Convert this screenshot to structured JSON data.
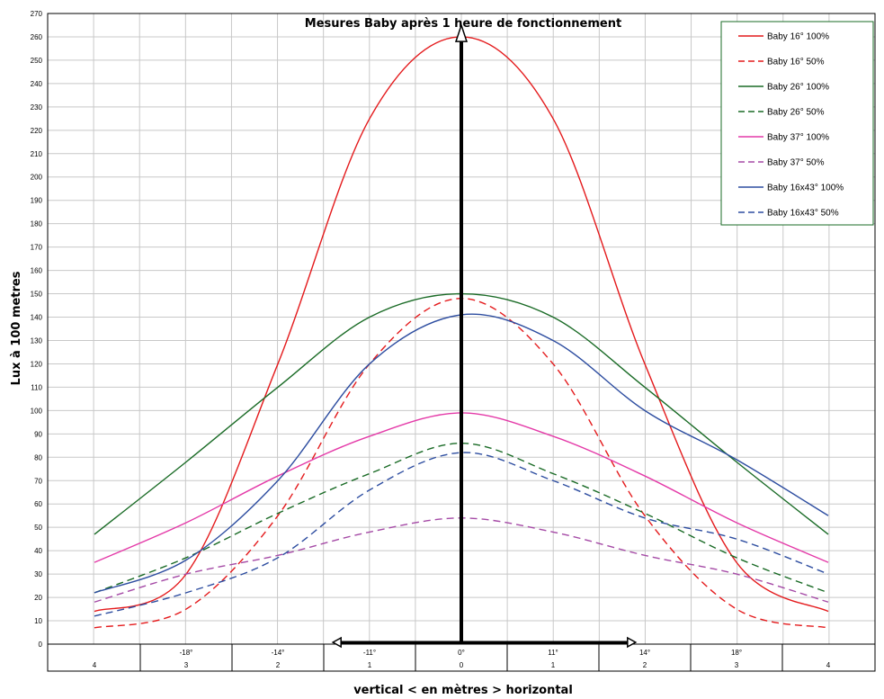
{
  "chart_data": {
    "type": "line",
    "title": "Mesures Baby après 1 heure de fonctionnement",
    "xlabel": "vertical < en mètres > horizontal",
    "ylabel": "Lux à 100 metres",
    "ylim": [
      0,
      270
    ],
    "y_ticks": [
      0,
      10,
      20,
      30,
      40,
      50,
      60,
      70,
      80,
      90,
      100,
      110,
      120,
      130,
      140,
      150,
      160,
      170,
      180,
      190,
      200,
      210,
      220,
      230,
      240,
      250,
      260,
      270
    ],
    "x": [
      -4,
      -3,
      -2,
      -1,
      0,
      1,
      2,
      3,
      4
    ],
    "x_angle_labels": [
      "",
      "-18°",
      "-14°",
      "-11°",
      "0°",
      "11°",
      "14°",
      "18°",
      ""
    ],
    "x_meter_labels": [
      "4",
      "3",
      "2",
      "1",
      "0",
      "1",
      "2",
      "3",
      "4"
    ],
    "grid": true,
    "legend_position": "top-right",
    "annotations": [
      "vertical arrow at 0",
      "horizontal double arrow from -1.4 to 1.9"
    ],
    "series": [
      {
        "name": "Baby 16° 100%",
        "color": "#e41a1c",
        "dash": false,
        "points": [
          [
            -4,
            14
          ],
          [
            -3,
            30
          ],
          [
            -2,
            120
          ],
          [
            -1,
            225
          ],
          [
            0,
            260
          ],
          [
            1,
            225
          ],
          [
            2,
            120
          ],
          [
            3,
            35
          ],
          [
            4,
            14
          ]
        ]
      },
      {
        "name": "Baby 16° 50%",
        "color": "#e41a1c",
        "dash": true,
        "points": [
          [
            -4,
            7
          ],
          [
            -3,
            15
          ],
          [
            -2,
            55
          ],
          [
            -1,
            120
          ],
          [
            0,
            148
          ],
          [
            1,
            120
          ],
          [
            2,
            55
          ],
          [
            3,
            15
          ],
          [
            4,
            7
          ]
        ]
      },
      {
        "name": "Baby 26° 100%",
        "color": "#1a6b26",
        "dash": false,
        "points": [
          [
            -4,
            47
          ],
          [
            -3,
            78
          ],
          [
            -2,
            110
          ],
          [
            -1,
            140
          ],
          [
            0,
            150
          ],
          [
            1,
            140
          ],
          [
            2,
            110
          ],
          [
            3,
            78
          ],
          [
            4,
            47
          ]
        ]
      },
      {
        "name": "Baby 26° 50%",
        "color": "#1a6b26",
        "dash": true,
        "points": [
          [
            -4,
            22
          ],
          [
            -3,
            37
          ],
          [
            -2,
            56
          ],
          [
            -1,
            73
          ],
          [
            0,
            86
          ],
          [
            1,
            73
          ],
          [
            2,
            56
          ],
          [
            3,
            37
          ],
          [
            4,
            22
          ]
        ]
      },
      {
        "name": "Baby 37° 100%",
        "color": "#e43aa8",
        "dash": false,
        "points": [
          [
            -4,
            35
          ],
          [
            -3,
            52
          ],
          [
            -2,
            72
          ],
          [
            -1,
            89
          ],
          [
            0,
            99
          ],
          [
            1,
            89
          ],
          [
            2,
            72
          ],
          [
            3,
            52
          ],
          [
            4,
            35
          ]
        ]
      },
      {
        "name": "Baby 37° 50%",
        "color": "#a54aa6",
        "dash": true,
        "points": [
          [
            -4,
            18
          ],
          [
            -3,
            30
          ],
          [
            -2,
            38
          ],
          [
            -1,
            48
          ],
          [
            0,
            54
          ],
          [
            1,
            48
          ],
          [
            2,
            38
          ],
          [
            3,
            30
          ],
          [
            4,
            18
          ]
        ]
      },
      {
        "name": "Baby 16x43° 100%",
        "color": "#2d4da0",
        "dash": false,
        "points": [
          [
            -4,
            22
          ],
          [
            -3,
            36
          ],
          [
            -2,
            70
          ],
          [
            -1,
            120
          ],
          [
            0,
            141
          ],
          [
            1,
            130
          ],
          [
            2,
            100
          ],
          [
            3,
            79
          ],
          [
            4,
            55
          ]
        ]
      },
      {
        "name": "Baby 16x43° 50%",
        "color": "#2d4da0",
        "dash": true,
        "points": [
          [
            -4,
            12
          ],
          [
            -3,
            22
          ],
          [
            -2,
            37
          ],
          [
            -1,
            66
          ],
          [
            0,
            82
          ],
          [
            1,
            70
          ],
          [
            2,
            54
          ],
          [
            3,
            45
          ],
          [
            4,
            30
          ]
        ]
      }
    ]
  }
}
